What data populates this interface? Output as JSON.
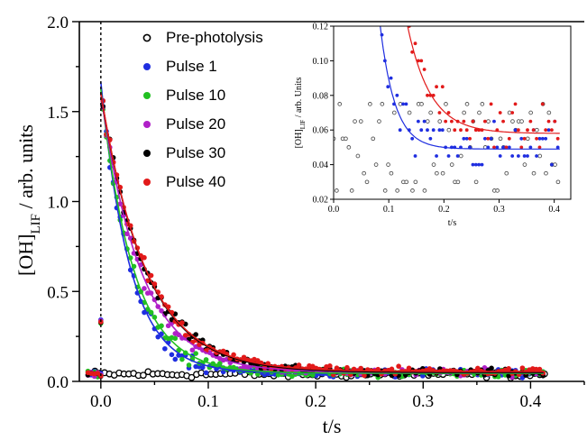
{
  "chart_data": [
    {
      "type": "scatter",
      "xlabel": "t/s",
      "ylabel_main": "[OH]",
      "ylabel_sub": "LIF",
      "ylabel_rest": " / arb. units",
      "xlim": [
        -0.02,
        0.45
      ],
      "ylim": [
        0,
        2.0
      ],
      "x_ticks": [
        "0.0",
        "0.1",
        "0.2",
        "0.3",
        "0.4"
      ],
      "x_tick_values": [
        0,
        0.1,
        0.2,
        0.3,
        0.4
      ],
      "y_ticks": [
        "0.0",
        "0.5",
        "1.0",
        "1.5",
        "2.0"
      ],
      "y_tick_values": [
        0,
        0.5,
        1.0,
        1.5,
        2.0
      ],
      "photolysis_line_x": 0,
      "legend_placement": "top-right",
      "series": [
        {
          "name": "Pre-photolysis",
          "color": "#000000",
          "marker": "open-circle",
          "fit": null
        },
        {
          "name": "Pulse 1",
          "color": "#1f2ee0",
          "marker": "filled-circle",
          "fit": {
            "A": 1.62,
            "k": 37,
            "b": 0.045
          }
        },
        {
          "name": "Pulse 10",
          "color": "#22c022",
          "marker": "filled-circle",
          "fit": {
            "A": 1.58,
            "k": 33,
            "b": 0.045
          }
        },
        {
          "name": "Pulse 20",
          "color": "#b020c8",
          "marker": "filled-circle",
          "fit": {
            "A": 1.55,
            "k": 27,
            "b": 0.05
          }
        },
        {
          "name": "Pulse 30",
          "color": "#000000",
          "marker": "filled-circle",
          "fit": {
            "A": 1.55,
            "k": 24,
            "b": 0.05
          }
        },
        {
          "name": "Pulse 40",
          "color": "#e21a1a",
          "marker": "filled-circle",
          "fit": {
            "A": 1.55,
            "k": 24,
            "b": 0.055
          }
        }
      ]
    },
    {
      "type": "scatter",
      "xlabel": "t/s",
      "ylabel_main": "[OH]",
      "ylabel_sub": "LIF",
      "ylabel_rest": " / arb. Units",
      "xlim": [
        0,
        0.43
      ],
      "ylim": [
        0.02,
        0.12
      ],
      "x_ticks": [
        "0.0",
        "0.1",
        "0.2",
        "0.3",
        "0.4"
      ],
      "x_tick_values": [
        0,
        0.1,
        0.2,
        0.3,
        0.4
      ],
      "y_ticks": [
        "0.02",
        "0.04",
        "0.06",
        "0.08",
        "0.10",
        "0.12"
      ],
      "y_tick_values": [
        0.02,
        0.04,
        0.06,
        0.08,
        0.1,
        0.12
      ],
      "series": [
        {
          "name": "Pre-photolysis",
          "color": "#555555",
          "marker": "open-circle",
          "fit": null
        },
        {
          "name": "Pulse 1",
          "color": "#1f2ee0",
          "marker": "filled-circle",
          "fit": {
            "A": 1.62,
            "k": 37,
            "b": 0.049
          }
        },
        {
          "name": "Pulse 40",
          "color": "#e21a1a",
          "marker": "filled-circle",
          "fit": {
            "A": 1.55,
            "k": 24,
            "b": 0.058
          }
        }
      ]
    }
  ]
}
